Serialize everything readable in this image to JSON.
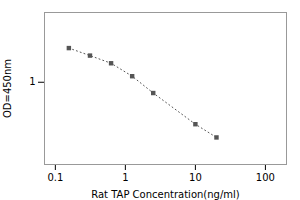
{
  "chart_data": {
    "type": "line",
    "x": [
      0.156,
      0.3125,
      0.625,
      1.25,
      2.5,
      10.0,
      20.0
    ],
    "values": [
      2.2,
      1.85,
      1.55,
      1.15,
      0.78,
      0.38,
      0.28
    ],
    "x_label": "Rat TAP Concentration(ng/ml)",
    "y_label": "OD=450nm",
    "xlim": [
      0.07,
      200
    ],
    "ylim": [
      0.15,
      5.0
    ],
    "xticks": [
      0.1,
      1,
      10,
      100
    ],
    "yticks": [
      1
    ],
    "log": true,
    "color": "#555555",
    "marker": "square",
    "line_style": "dotted"
  }
}
